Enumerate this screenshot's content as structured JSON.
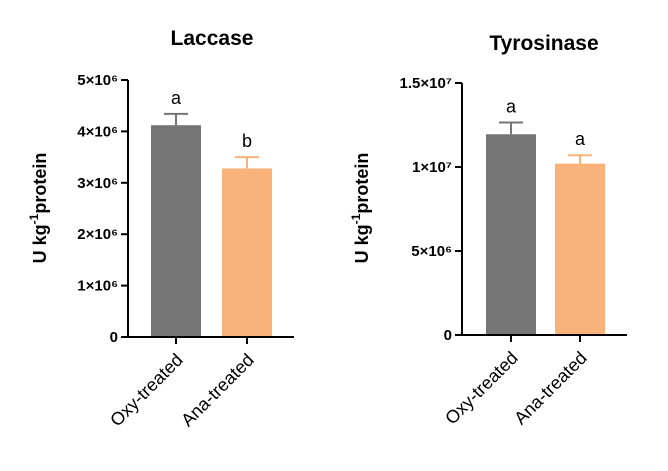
{
  "colors": {
    "oxy": "#757575",
    "ana": "#F9B27A",
    "axis": "#000000"
  },
  "chart_data": [
    {
      "type": "bar",
      "title": "Laccase",
      "categories": [
        "Oxy-treated",
        "Ana-treated"
      ],
      "values": [
        4120000,
        3280000
      ],
      "errors": [
        220000,
        220000
      ],
      "significance": [
        "a",
        "b"
      ],
      "ylabel_main": "U kg",
      "ylabel_sup": "-1",
      "ylabel_tail": "protein",
      "ylim": [
        0,
        5000000
      ],
      "tick_values": [
        0,
        1000000,
        2000000,
        3000000,
        4000000,
        5000000
      ],
      "tick_labels": [
        "0",
        "1×10⁶",
        "2×10⁶",
        "3×10⁶",
        "4×10⁶",
        "5×10⁶"
      ],
      "xlabel": ""
    },
    {
      "type": "bar",
      "title": "Tyrosinase",
      "categories": [
        "Oxy-treated",
        "Ana-treated"
      ],
      "values": [
        11950000,
        10200000
      ],
      "errors": [
        700000,
        500000
      ],
      "significance": [
        "a",
        "a"
      ],
      "ylabel_main": "U kg",
      "ylabel_sup": "-1",
      "ylabel_tail": "protein",
      "ylim": [
        0,
        15000000
      ],
      "tick_values": [
        0,
        5000000,
        10000000,
        15000000
      ],
      "tick_labels": [
        "0",
        "5×10⁶",
        "1×10⁷",
        "1.5×10⁷"
      ],
      "xlabel": ""
    }
  ]
}
